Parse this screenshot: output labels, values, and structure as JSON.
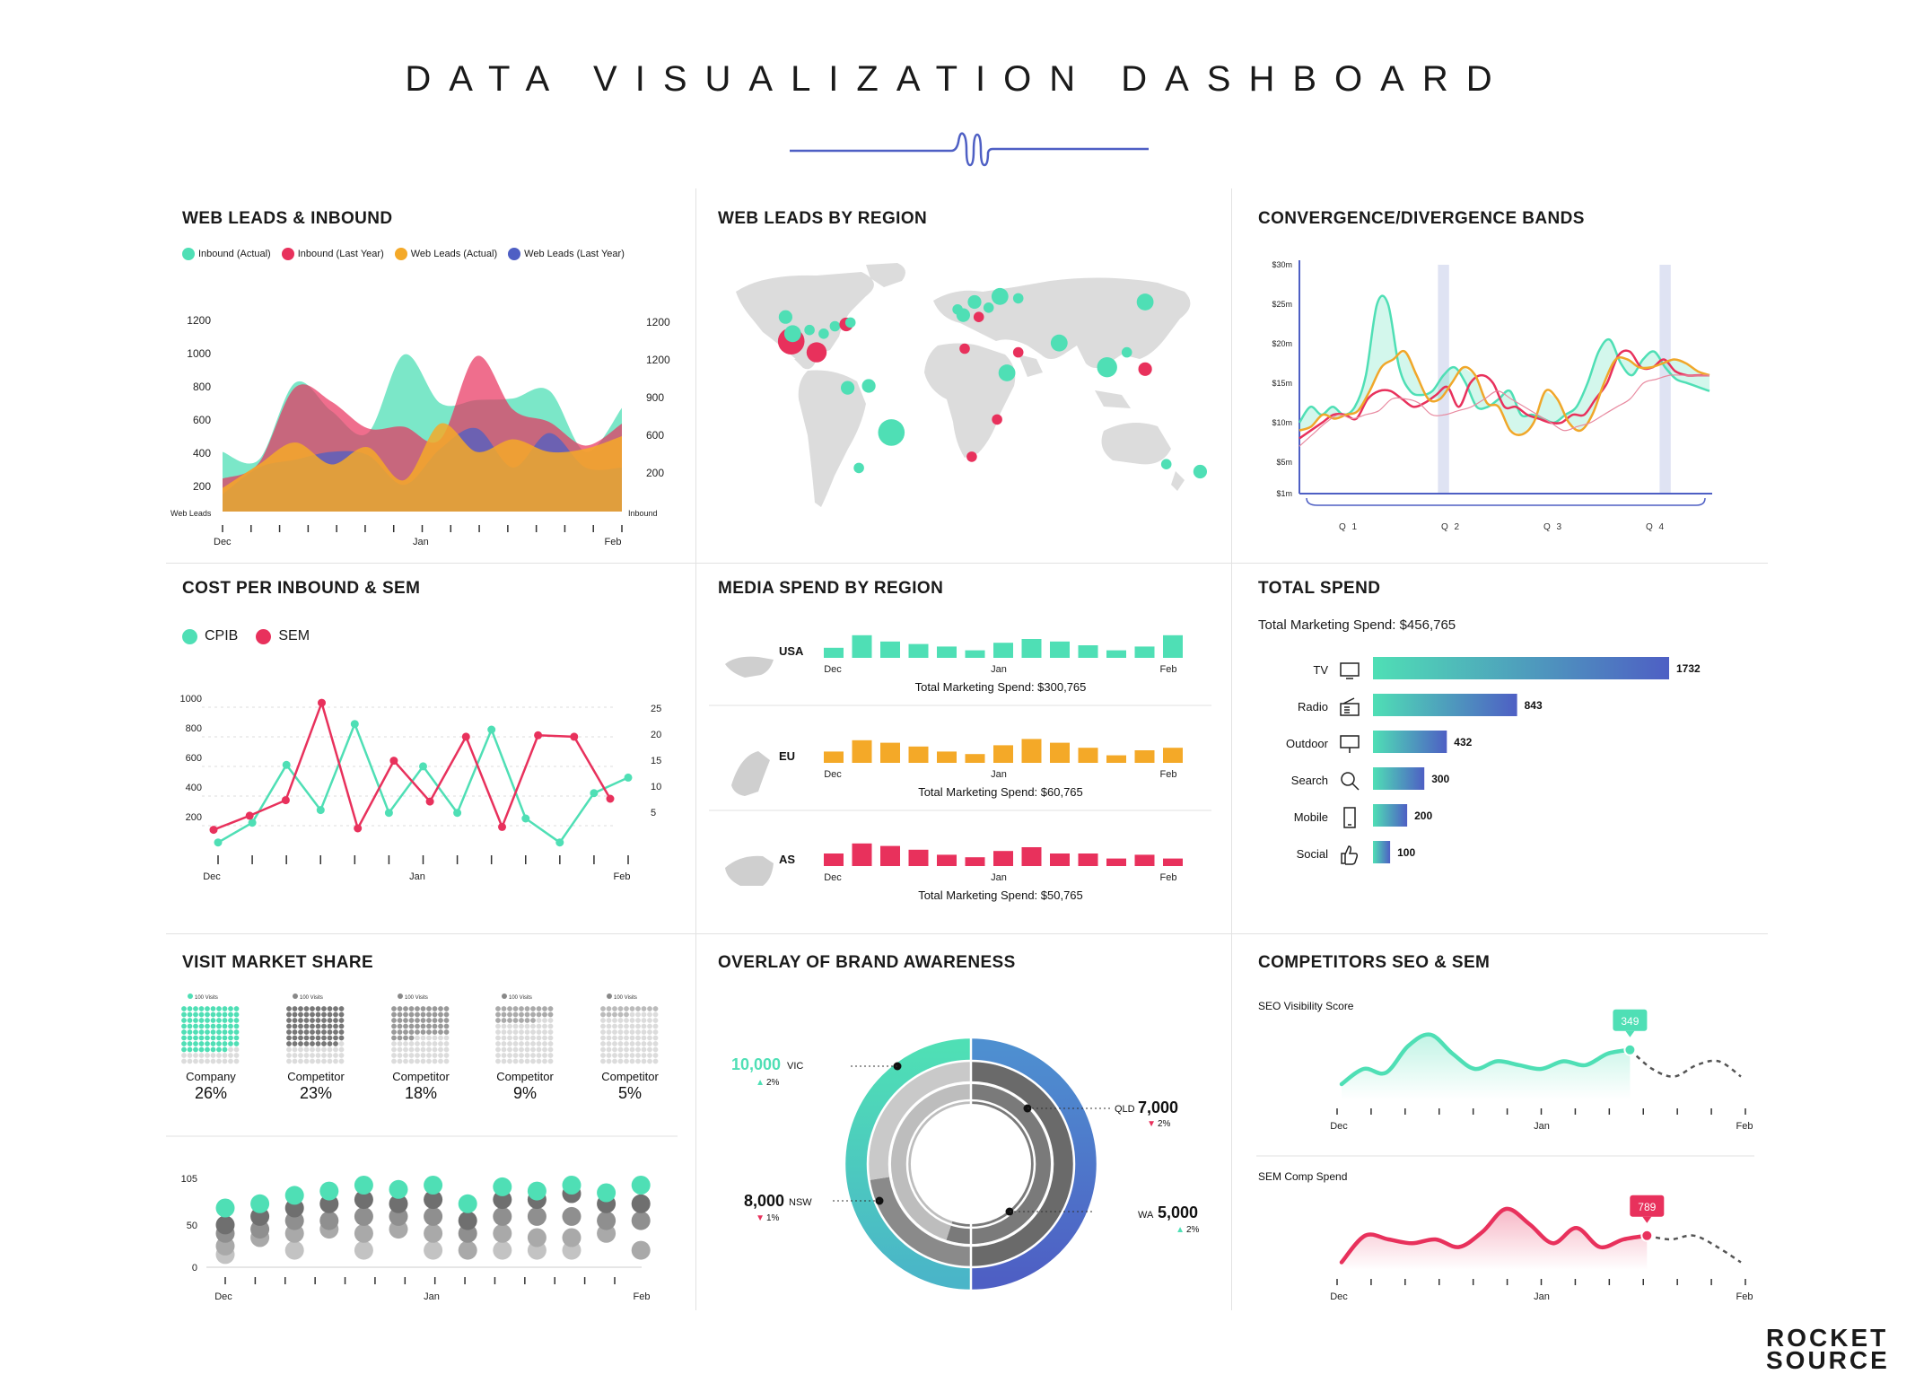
{
  "page": {
    "title": "DATA VISUALIZATION DASHBOARD"
  },
  "panels": {
    "web_leads_inbound": "WEB LEADS & INBOUND",
    "web_leads_region": "WEB LEADS BY REGION",
    "convergence": "CONVERGENCE/DIVERGENCE BANDS",
    "cost_per_inbound": "COST PER INBOUND & SEM",
    "media_spend": "MEDIA SPEND BY REGION",
    "total_spend": "TOTAL SPEND",
    "visit_share": "VISIT MARKET SHARE",
    "brand_awareness": "OVERLAY OF BRAND AWARENESS",
    "competitors": "COMPETITORS SEO & SEM"
  },
  "colors": {
    "teal": "#4fdfb5",
    "red": "#e8315c",
    "orange": "#f4a928",
    "blue": "#4e5fc4",
    "grey": "#dcdcdc"
  },
  "logo": {
    "line1": "ROCKET",
    "line2": "SOURCE"
  },
  "chart_data": [
    {
      "id": "web_leads_inbound",
      "type": "area",
      "legend": [
        "Inbound (Actual)",
        "Inbound (Last Year)",
        "Web Leads (Actual)",
        "Web Leads (Last Year)"
      ],
      "left_axis": {
        "label": "Web Leads",
        "ticks": [
          "1200",
          "1000",
          "800",
          "600",
          "400",
          "200"
        ]
      },
      "right_axis": {
        "label": "Inbound",
        "ticks": [
          "1200",
          "1200",
          "900",
          "600",
          "200"
        ]
      },
      "x_labels": [
        "Dec",
        "Jan",
        "Feb"
      ],
      "ylim": [
        0,
        1200
      ],
      "series": [
        {
          "name": "Inbound (Actual)",
          "values": [
            380,
            330,
            820,
            640,
            500,
            1000,
            690,
            710,
            720,
            770,
            380,
            660
          ]
        },
        {
          "name": "Inbound (Last Year)",
          "values": [
            210,
            310,
            790,
            700,
            530,
            540,
            460,
            990,
            650,
            570,
            420,
            560
          ]
        },
        {
          "name": "Web Leads (Actual)",
          "values": [
            150,
            300,
            440,
            300,
            410,
            200,
            560,
            380,
            460,
            380,
            400,
            480
          ]
        },
        {
          "name": "Web Leads (Last Year)",
          "values": [
            110,
            280,
            330,
            380,
            360,
            170,
            400,
            530,
            280,
            500,
            280,
            280
          ]
        }
      ]
    },
    {
      "id": "web_leads_region",
      "type": "scatter",
      "title": "Web Leads by Region",
      "points": [
        {
          "lon": -122,
          "lat": 47,
          "value": 2,
          "series": "actual"
        },
        {
          "lon": -118,
          "lat": 34,
          "value": 6,
          "series": "last_year"
        },
        {
          "lon": -117,
          "lat": 38,
          "value": 3,
          "series": "actual"
        },
        {
          "lon": -105,
          "lat": 40,
          "value": 1,
          "series": "actual"
        },
        {
          "lon": -95,
          "lat": 38,
          "value": 1,
          "series": "actual"
        },
        {
          "lon": -87,
          "lat": 42,
          "value": 1,
          "series": "actual"
        },
        {
          "lon": -79,
          "lat": 43,
          "value": 2,
          "series": "last_year"
        },
        {
          "lon": -76,
          "lat": 44,
          "value": 1,
          "series": "actual"
        },
        {
          "lon": -100,
          "lat": 28,
          "value": 4,
          "series": "last_year"
        },
        {
          "lon": -78,
          "lat": 9,
          "value": 2,
          "series": "actual"
        },
        {
          "lon": -63,
          "lat": 10,
          "value": 2,
          "series": "actual"
        },
        {
          "lon": -47,
          "lat": -15,
          "value": 6,
          "series": "actual"
        },
        {
          "lon": -70,
          "lat": -34,
          "value": 1,
          "series": "actual"
        },
        {
          "lon": 0,
          "lat": 51,
          "value": 1,
          "series": "actual"
        },
        {
          "lon": 4,
          "lat": 48,
          "value": 2,
          "series": "actual"
        },
        {
          "lon": 12,
          "lat": 55,
          "value": 2,
          "series": "actual"
        },
        {
          "lon": 22,
          "lat": 52,
          "value": 1,
          "series": "actual"
        },
        {
          "lon": 30,
          "lat": 58,
          "value": 3,
          "series": "actual"
        },
        {
          "lon": 43,
          "lat": 57,
          "value": 1,
          "series": "actual"
        },
        {
          "lon": 15,
          "lat": 47,
          "value": 1,
          "series": "last_year"
        },
        {
          "lon": 5,
          "lat": 30,
          "value": 1,
          "series": "last_year"
        },
        {
          "lon": 43,
          "lat": 28,
          "value": 1,
          "series": "last_year"
        },
        {
          "lon": 35,
          "lat": 17,
          "value": 3,
          "series": "actual"
        },
        {
          "lon": 72,
          "lat": 33,
          "value": 3,
          "series": "actual"
        },
        {
          "lon": 133,
          "lat": 55,
          "value": 3,
          "series": "actual"
        },
        {
          "lon": 120,
          "lat": 28,
          "value": 1,
          "series": "actual"
        },
        {
          "lon": 106,
          "lat": 20,
          "value": 4,
          "series": "actual"
        },
        {
          "lon": 133,
          "lat": 19,
          "value": 2,
          "series": "last_year"
        },
        {
          "lon": 28,
          "lat": -8,
          "value": 1,
          "series": "last_year"
        },
        {
          "lon": 10,
          "lat": -28,
          "value": 1,
          "series": "last_year"
        },
        {
          "lon": 148,
          "lat": -32,
          "value": 1,
          "series": "actual"
        },
        {
          "lon": 172,
          "lat": -36,
          "value": 2,
          "series": "actual"
        }
      ]
    },
    {
      "id": "convergence",
      "type": "line",
      "y_ticks": [
        "$30m",
        "$25m",
        "$20m",
        "$15m",
        "$10m",
        "$5m",
        "$1m"
      ],
      "x_labels": [
        "Q 1",
        "Q 2",
        "Q 3",
        "Q 4"
      ],
      "ylim": [
        1,
        30
      ],
      "highlight_bands": [
        [
          12.5,
          13.5
        ],
        [
          32.5,
          33.5
        ]
      ],
      "series": [
        {
          "name": "teal",
          "values": [
            10,
            12,
            11,
            12,
            11,
            12,
            16,
            25,
            25,
            17,
            14,
            13.5,
            14,
            16,
            17,
            15,
            12,
            12,
            13,
            14,
            11,
            11,
            10.5,
            10,
            11,
            12,
            15,
            19,
            20.5,
            17.5,
            16,
            18,
            19,
            17,
            15.5,
            15,
            14.5,
            14
          ]
        },
        {
          "name": "red",
          "values": [
            8,
            9,
            10,
            11,
            11,
            10.5,
            13,
            14,
            14,
            13,
            12,
            12.5,
            13.5,
            14.5,
            12,
            15,
            16,
            15,
            12,
            12,
            11,
            10.5,
            10,
            10,
            11,
            11,
            13,
            15,
            18.5,
            19,
            17,
            17,
            18,
            16.5,
            16,
            16,
            16
          ]
        },
        {
          "name": "orange",
          "values": [
            9,
            9.5,
            11,
            10.5,
            11,
            11.5,
            14,
            17,
            18,
            19,
            16,
            13,
            13,
            15,
            17,
            16,
            12.5,
            12,
            9,
            8.5,
            10,
            14,
            13,
            10,
            9,
            11,
            15,
            18,
            18,
            17,
            17,
            17.5,
            18,
            17.5,
            16.5,
            16
          ]
        },
        {
          "name": "pink",
          "values": [
            7,
            8.5,
            10,
            11,
            10.5,
            11,
            11.5,
            13,
            13,
            12.5,
            11,
            11,
            11.5,
            12,
            13,
            14,
            13,
            12,
            11,
            10,
            9,
            9.5,
            10,
            11,
            12,
            13,
            15,
            15.5,
            16,
            16,
            16,
            16
          ]
        }
      ]
    },
    {
      "id": "cost_per_inbound",
      "type": "line",
      "legend": [
        "CPIB",
        "SEM"
      ],
      "left_axis": [
        "1000",
        "800",
        "600",
        "400",
        "200"
      ],
      "right_axis": [
        "25",
        "20",
        "15",
        "10",
        "5"
      ],
      "x_labels": [
        "Dec",
        "Jan",
        "Feb"
      ],
      "ylim": [
        0,
        1000
      ],
      "series": [
        {
          "name": "CPIB",
          "values": [
            40,
            180,
            590,
            270,
            880,
            250,
            580,
            250,
            840,
            210,
            40,
            390,
            500
          ]
        },
        {
          "name": "SEM",
          "values": [
            130,
            230,
            340,
            1030,
            140,
            620,
            330,
            790,
            150,
            800,
            790,
            350
          ]
        }
      ]
    },
    {
      "id": "media_spend",
      "type": "bar",
      "x_labels": [
        "Dec",
        "Jan",
        "Feb"
      ],
      "regions": [
        {
          "name": "USA",
          "total": "Total Marketing Spend: $300,765",
          "color": "#4fdfb5",
          "values": [
            8,
            18,
            13,
            11,
            9,
            6,
            12,
            15,
            13,
            10,
            6,
            9,
            18
          ]
        },
        {
          "name": "EU",
          "total": "Total Marketing Spend: $60,765",
          "color": "#f4a928",
          "values": [
            9,
            18,
            16,
            13,
            9,
            7,
            14,
            19,
            16,
            12,
            6,
            10,
            12
          ]
        },
        {
          "name": "AS",
          "total": "Total Marketing Spend: $50,765",
          "color": "#e8315c",
          "values": [
            10,
            18,
            16,
            13,
            9,
            7,
            12,
            15,
            10,
            10,
            6,
            9,
            6
          ]
        }
      ]
    },
    {
      "id": "total_spend",
      "type": "bar",
      "subtitle": "Total Marketing Spend: $456,765",
      "categories": [
        "TV",
        "Radio",
        "Outdoor",
        "Search",
        "Mobile",
        "Social"
      ],
      "values": [
        1732,
        843,
        432,
        300,
        200,
        100
      ],
      "labels": [
        "1732",
        "843",
        "432",
        "300",
        "200",
        "100"
      ]
    },
    {
      "id": "visit_share",
      "type": "bar",
      "unit_label": "100 Visits",
      "groups": [
        {
          "name": "Company",
          "percent": "26%",
          "value": 26
        },
        {
          "name": "Competitor",
          "percent": "23%",
          "value": 23
        },
        {
          "name": "Competitor",
          "percent": "18%",
          "value": 18
        },
        {
          "name": "Competitor",
          "percent": "9%",
          "value": 9
        },
        {
          "name": "Competitor",
          "percent": "5%",
          "value": 5
        }
      ],
      "bubble_chart": {
        "y_ticks": [
          "105",
          "50",
          "0"
        ],
        "x_labels": [
          "Dec",
          "Jan",
          "Feb"
        ],
        "columns": [
          [
            70,
            50,
            40,
            25,
            15
          ],
          [
            75,
            60,
            45,
            35
          ],
          [
            85,
            70,
            55,
            40,
            20
          ],
          [
            90,
            75,
            55,
            45
          ],
          [
            97,
            80,
            60,
            40,
            20
          ],
          [
            92,
            75,
            60,
            45
          ],
          [
            97,
            80,
            60,
            40,
            20
          ],
          [
            75,
            55,
            40,
            20
          ],
          [
            95,
            80,
            60,
            40,
            20
          ],
          [
            90,
            80,
            60,
            35,
            20
          ],
          [
            97,
            87,
            60,
            35,
            20
          ],
          [
            88,
            75,
            55,
            40
          ],
          [
            97,
            75,
            55,
            20
          ]
        ]
      }
    },
    {
      "id": "brand_awareness",
      "type": "pie",
      "rings": [
        {
          "label": "VIC",
          "value": "10,000",
          "change": "2%",
          "trend": "up",
          "color": "#4fdfb5"
        },
        {
          "label": "QLD",
          "value": "7,000",
          "change": "2%",
          "trend": "down",
          "color": "#4e5fc4"
        },
        {
          "label": "NSW",
          "value": "8,000",
          "change": "1%",
          "trend": "down",
          "color": "#6a6a6a"
        },
        {
          "label": "WA",
          "value": "5,000",
          "change": "2%",
          "trend": "up",
          "color": "#4fdfb5"
        }
      ]
    },
    {
      "id": "competitors_seo",
      "type": "line",
      "title": "SEO Visibility Score",
      "callout": "349",
      "x_labels": [
        "Dec",
        "Jan",
        "Feb"
      ],
      "values": [
        20,
        40,
        35,
        70,
        85,
        60,
        40,
        50,
        45,
        40,
        50,
        45,
        60,
        65,
        40,
        30,
        45,
        50,
        30
      ]
    },
    {
      "id": "competitors_sem",
      "type": "line",
      "title": "SEM Comp Spend",
      "callout": "789",
      "x_labels": [
        "Dec",
        "Jan",
        "Feb"
      ],
      "values": [
        10,
        45,
        40,
        35,
        40,
        30,
        50,
        80,
        60,
        35,
        55,
        30,
        40,
        45,
        40,
        45,
        30,
        10
      ]
    }
  ]
}
